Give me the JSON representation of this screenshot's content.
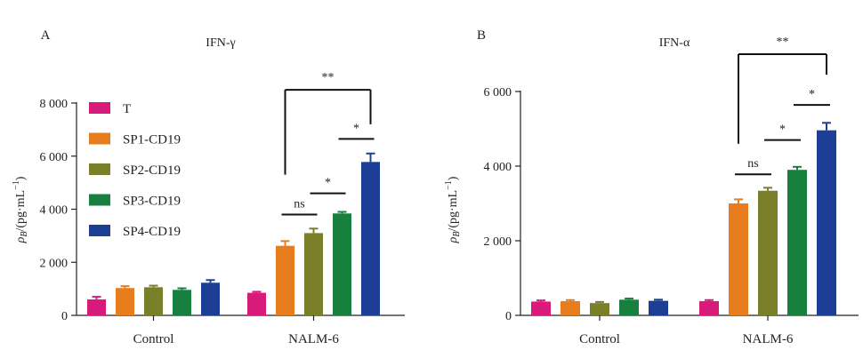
{
  "chart_data": [
    {
      "type": "bar",
      "panel_label": "A",
      "title": "IFN-γ",
      "ylabel_main": "ρ",
      "ylabel_sub": "B",
      "ylabel_rest": "/(pg·mL",
      "ylabel_sup": "−1",
      "ylabel_close": ")",
      "ylim": [
        0,
        8000
      ],
      "yticks": [
        0,
        2000,
        4000,
        6000,
        8000
      ],
      "ytick_labels": [
        "0",
        "2 000",
        "4 000",
        "6 000",
        "8 000"
      ],
      "groups": [
        "Control",
        "NALM-6"
      ],
      "series": [
        {
          "name": "T",
          "color": "#d81b7a",
          "values": [
            600,
            850
          ],
          "errors": [
            100,
            40
          ]
        },
        {
          "name": "SP1-CD19",
          "color": "#e87d1e",
          "values": [
            1030,
            2620
          ],
          "errors": [
            70,
            180
          ]
        },
        {
          "name": "SP2-CD19",
          "color": "#7a7f2a",
          "values": [
            1060,
            3100
          ],
          "errors": [
            60,
            170
          ]
        },
        {
          "name": "SP3-CD19",
          "color": "#17803f",
          "values": [
            960,
            3840
          ],
          "errors": [
            60,
            60
          ]
        },
        {
          "name": "SP4-CD19",
          "color": "#1c3f95",
          "values": [
            1230,
            5780
          ],
          "errors": [
            100,
            320
          ]
        }
      ],
      "legend_position": "top-left",
      "annotations": [
        {
          "text": "ns",
          "type": "bar",
          "from_series": 1,
          "to_series": 2,
          "level": 3800
        },
        {
          "text": "*",
          "type": "bar",
          "from_series": 2,
          "to_series": 3,
          "level": 4600
        },
        {
          "text": "*",
          "type": "bar",
          "from_series": 3,
          "to_series": 4,
          "level": 6650
        },
        {
          "text": "**",
          "type": "bracket",
          "from_series": 1,
          "to_series": 4,
          "level": 8500,
          "drop_from": 5300,
          "drop_to": 7200
        }
      ]
    },
    {
      "type": "bar",
      "panel_label": "B",
      "title": "IFN-α",
      "ylabel_main": "ρ",
      "ylabel_sub": "B",
      "ylabel_rest": "/(pg·mL",
      "ylabel_sup": "−1",
      "ylabel_close": ")",
      "ylim": [
        0,
        6000
      ],
      "yticks": [
        0,
        2000,
        4000,
        6000
      ],
      "ytick_labels": [
        "0",
        "2 000",
        "4 000",
        "6 000"
      ],
      "groups": [
        "Control",
        "NALM-6"
      ],
      "series": [
        {
          "name": "T",
          "color": "#d81b7a",
          "values": [
            370,
            380
          ],
          "errors": [
            30,
            30
          ]
        },
        {
          "name": "SP1-CD19",
          "color": "#e87d1e",
          "values": [
            380,
            3000
          ],
          "errors": [
            30,
            110
          ]
        },
        {
          "name": "SP2-CD19",
          "color": "#7a7f2a",
          "values": [
            330,
            3340
          ],
          "errors": [
            30,
            80
          ]
        },
        {
          "name": "SP3-CD19",
          "color": "#17803f",
          "values": [
            420,
            3900
          ],
          "errors": [
            30,
            80
          ]
        },
        {
          "name": "SP4-CD19",
          "color": "#1c3f95",
          "values": [
            390,
            4960
          ],
          "errors": [
            30,
            200
          ]
        }
      ],
      "annotations": [
        {
          "text": "ns",
          "type": "bar",
          "from_series": 1,
          "to_series": 2,
          "level": 3780
        },
        {
          "text": "*",
          "type": "bar",
          "from_series": 2,
          "to_series": 3,
          "level": 4700
        },
        {
          "text": "*",
          "type": "bar",
          "from_series": 3,
          "to_series": 4,
          "level": 5640
        },
        {
          "text": "**",
          "type": "bracket",
          "from_series": 1,
          "to_series": 4,
          "level": 7000,
          "drop_from": 4600,
          "drop_to": 6450
        }
      ]
    }
  ]
}
